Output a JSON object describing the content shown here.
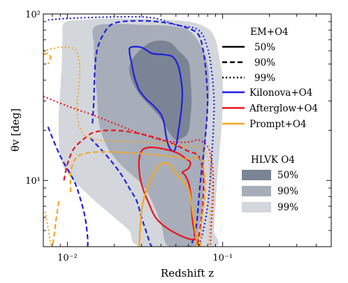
{
  "chart_data": {
    "type": "contour",
    "title": "",
    "xlabel": "Redshift z",
    "ylabel": "θv [deg]",
    "xscale": "log",
    "yscale": "log",
    "xlim": [
      0.007,
      0.5
    ],
    "ylim": [
      4,
      100
    ],
    "x_ticks": [
      {
        "value": 0.01,
        "label": "10⁻²"
      },
      {
        "value": 0.1,
        "label": "10⁻¹"
      }
    ],
    "y_ticks": [
      {
        "value": 10,
        "label": "10¹"
      },
      {
        "value": 100,
        "label": "10²"
      }
    ],
    "colors": {
      "kilonova": "#1f1fe0",
      "afterglow": "#e8141e",
      "prompt": "#f5a623",
      "hlvk_50": "#7b8494",
      "hlvk_90": "#a7aeb9",
      "hlvk_99": "#d3d7dc"
    },
    "legend_em": {
      "title": "EM+O4",
      "styles": [
        {
          "label": "50%",
          "dash": "solid"
        },
        {
          "label": "90%",
          "dash": "dashed"
        },
        {
          "label": "99%",
          "dash": "dotted"
        }
      ],
      "series": [
        {
          "label": "Kilonova+O4",
          "key": "kilonova"
        },
        {
          "label": "Afterglow+O4",
          "key": "afterglow"
        },
        {
          "label": "Prompt+O4",
          "key": "prompt"
        }
      ]
    },
    "legend_hlvk": {
      "title": "HLVK O4",
      "entries": [
        {
          "label": "50%",
          "key": "hlvk_50"
        },
        {
          "label": "90%",
          "key": "hlvk_90"
        },
        {
          "label": "99%",
          "key": "hlvk_99"
        }
      ]
    },
    "filled_contours": [
      {
        "level": "99%",
        "color_key": "hlvk_99",
        "points": [
          [
            0.0095,
            88
          ],
          [
            0.012,
            92
          ],
          [
            0.02,
            94
          ],
          [
            0.035,
            93
          ],
          [
            0.06,
            90
          ],
          [
            0.08,
            82
          ],
          [
            0.09,
            70
          ],
          [
            0.095,
            55
          ],
          [
            0.1,
            40
          ],
          [
            0.1,
            28
          ],
          [
            0.098,
            20
          ],
          [
            0.095,
            14
          ],
          [
            0.092,
            10
          ],
          [
            0.09,
            7
          ],
          [
            0.088,
            5
          ],
          [
            0.087,
            4
          ],
          [
            0.03,
            4
          ],
          [
            0.025,
            5
          ],
          [
            0.02,
            6
          ],
          [
            0.014,
            8
          ],
          [
            0.01,
            11
          ],
          [
            0.009,
            14
          ],
          [
            0.0088,
            18
          ],
          [
            0.0088,
            25
          ],
          [
            0.009,
            35
          ],
          [
            0.0092,
            50
          ],
          [
            0.0093,
            70
          ]
        ]
      },
      {
        "level": "90%",
        "color_key": "hlvk_90",
        "points": [
          [
            0.015,
            84
          ],
          [
            0.022,
            87
          ],
          [
            0.03,
            86
          ],
          [
            0.045,
            85
          ],
          [
            0.06,
            80
          ],
          [
            0.072,
            65
          ],
          [
            0.08,
            50
          ],
          [
            0.082,
            35
          ],
          [
            0.08,
            25
          ],
          [
            0.078,
            18
          ],
          [
            0.076,
            12
          ],
          [
            0.075,
            9
          ],
          [
            0.073,
            6.5
          ],
          [
            0.07,
            5
          ],
          [
            0.068,
            4
          ],
          [
            0.045,
            4
          ],
          [
            0.04,
            5.5
          ],
          [
            0.035,
            7.5
          ],
          [
            0.03,
            9.5
          ],
          [
            0.022,
            12.5
          ],
          [
            0.018,
            16
          ],
          [
            0.016,
            22
          ],
          [
            0.0155,
            32
          ],
          [
            0.015,
            45
          ],
          [
            0.0148,
            65
          ]
        ]
      },
      {
        "level": "50%",
        "color_key": "hlvk_50",
        "points": [
          [
            0.028,
            58
          ],
          [
            0.035,
            68
          ],
          [
            0.045,
            68
          ],
          [
            0.052,
            60
          ],
          [
            0.06,
            52
          ],
          [
            0.062,
            42
          ],
          [
            0.063,
            30
          ],
          [
            0.062,
            24
          ],
          [
            0.06,
            19.5
          ],
          [
            0.055,
            18
          ],
          [
            0.05,
            17.5
          ],
          [
            0.045,
            19.5
          ],
          [
            0.042,
            22
          ],
          [
            0.038,
            25
          ],
          [
            0.034,
            28
          ],
          [
            0.029,
            33
          ],
          [
            0.026,
            40
          ],
          [
            0.025,
            48
          ]
        ]
      }
    ],
    "line_contours": [
      {
        "series": "kilonova",
        "level": "99%",
        "closed": false,
        "points": [
          [
            0.0075,
            92
          ],
          [
            0.01,
            94
          ],
          [
            0.02,
            96
          ],
          [
            0.035,
            95
          ],
          [
            0.05,
            86
          ],
          [
            0.07,
            80
          ],
          [
            0.08,
            62
          ],
          [
            0.085,
            45
          ],
          [
            0.088,
            30
          ],
          [
            0.087,
            20
          ],
          [
            0.085,
            14
          ],
          [
            0.083,
            10
          ],
          [
            0.08,
            7
          ],
          [
            0.075,
            5
          ],
          [
            0.07,
            4
          ]
        ]
      },
      {
        "series": "kilonova",
        "level": "90%",
        "closed": false,
        "points": [
          [
            0.0075,
            21
          ],
          [
            0.009,
            14
          ],
          [
            0.011,
            10
          ],
          [
            0.012,
            8
          ],
          [
            0.013,
            6
          ],
          [
            0.0135,
            4.5
          ],
          [
            0.0135,
            4
          ]
        ]
      },
      {
        "series": "kilonova",
        "level": "90%",
        "closed": false,
        "points": [
          [
            0.0145,
            22
          ],
          [
            0.0148,
            30
          ],
          [
            0.015,
            45
          ],
          [
            0.0155,
            60
          ],
          [
            0.017,
            75
          ],
          [
            0.02,
            88
          ],
          [
            0.03,
            91
          ],
          [
            0.045,
            88
          ],
          [
            0.06,
            82
          ],
          [
            0.07,
            75
          ],
          [
            0.075,
            60
          ],
          [
            0.078,
            45
          ],
          [
            0.08,
            30
          ],
          [
            0.078,
            20
          ],
          [
            0.075,
            14
          ],
          [
            0.072,
            10
          ],
          [
            0.07,
            7.5
          ],
          [
            0.068,
            5.5
          ],
          [
            0.065,
            4.5
          ],
          [
            0.062,
            4
          ]
        ]
      },
      {
        "series": "kilonova",
        "level": "90%",
        "closed": false,
        "points": [
          [
            0.014,
            18
          ],
          [
            0.018,
            14
          ],
          [
            0.022,
            11
          ],
          [
            0.025,
            9
          ],
          [
            0.028,
            7.5
          ],
          [
            0.03,
            6
          ],
          [
            0.032,
            5
          ],
          [
            0.034,
            4.2
          ],
          [
            0.035,
            4
          ]
        ]
      },
      {
        "series": "kilonova",
        "level": "50%",
        "closed": true,
        "points": [
          [
            0.0255,
            63
          ],
          [
            0.03,
            63
          ],
          [
            0.035,
            58
          ],
          [
            0.042,
            57
          ],
          [
            0.048,
            55
          ],
          [
            0.052,
            48
          ],
          [
            0.054,
            40
          ],
          [
            0.055,
            33
          ],
          [
            0.054,
            26
          ],
          [
            0.052,
            20
          ],
          [
            0.05,
            16
          ],
          [
            0.048,
            15
          ],
          [
            0.045,
            16
          ],
          [
            0.043,
            19
          ],
          [
            0.042,
            22
          ],
          [
            0.04,
            25
          ],
          [
            0.036,
            28
          ],
          [
            0.032,
            31
          ],
          [
            0.029,
            35
          ],
          [
            0.027,
            42
          ],
          [
            0.026,
            50
          ],
          [
            0.0252,
            58
          ]
        ]
      },
      {
        "series": "afterglow",
        "level": "99%",
        "closed": false,
        "points": [
          [
            0.007,
            32
          ],
          [
            0.01,
            28
          ],
          [
            0.015,
            24.5
          ],
          [
            0.02,
            22
          ],
          [
            0.03,
            19
          ],
          [
            0.04,
            17.5
          ],
          [
            0.05,
            17
          ],
          [
            0.06,
            17
          ],
          [
            0.07,
            17.5
          ],
          [
            0.08,
            16
          ],
          [
            0.085,
            13
          ],
          [
            0.087,
            10
          ],
          [
            0.086,
            7
          ],
          [
            0.084,
            5
          ],
          [
            0.083,
            4
          ]
        ]
      },
      {
        "series": "afterglow",
        "level": "90%",
        "closed": false,
        "points": [
          [
            0.0095,
            10
          ],
          [
            0.01,
            12.5
          ],
          [
            0.011,
            15.5
          ],
          [
            0.013,
            18
          ],
          [
            0.015,
            19.5
          ],
          [
            0.02,
            20
          ],
          [
            0.03,
            19
          ],
          [
            0.045,
            17
          ],
          [
            0.06,
            15
          ],
          [
            0.07,
            14
          ],
          [
            0.075,
            11
          ],
          [
            0.075,
            8
          ],
          [
            0.073,
            6
          ],
          [
            0.07,
            4.5
          ],
          [
            0.068,
            4
          ]
        ]
      },
      {
        "series": "afterglow",
        "level": "50%",
        "closed": true,
        "points": [
          [
            0.0305,
            15.3
          ],
          [
            0.035,
            15.8
          ],
          [
            0.045,
            15.2
          ],
          [
            0.052,
            14.5
          ],
          [
            0.058,
            13.5
          ],
          [
            0.062,
            12.8
          ],
          [
            0.06,
            11.8
          ],
          [
            0.055,
            11.2
          ],
          [
            0.057,
            10.8
          ],
          [
            0.06,
            9.8
          ],
          [
            0.062,
            8.5
          ],
          [
            0.063,
            7
          ],
          [
            0.064,
            5.7
          ],
          [
            0.066,
            4.8
          ],
          [
            0.065,
            4.4
          ],
          [
            0.05,
            4.8
          ],
          [
            0.038,
            5.8
          ],
          [
            0.033,
            7.5
          ],
          [
            0.03,
            9.5
          ],
          [
            0.029,
            11.5
          ],
          [
            0.029,
            13.5
          ]
        ]
      },
      {
        "series": "prompt",
        "level": "99%",
        "closed": false,
        "points": [
          [
            0.007,
            60
          ],
          [
            0.009,
            63
          ],
          [
            0.011,
            62
          ],
          [
            0.0118,
            55
          ],
          [
            0.012,
            45
          ],
          [
            0.0118,
            35
          ],
          [
            0.0115,
            28
          ],
          [
            0.0118,
            22
          ],
          [
            0.013,
            18.5
          ],
          [
            0.016,
            17.5
          ],
          [
            0.02,
            17.2
          ],
          [
            0.03,
            17
          ],
          [
            0.045,
            16.5
          ],
          [
            0.06,
            16
          ],
          [
            0.075,
            15.5
          ],
          [
            0.083,
            12
          ],
          [
            0.085,
            8
          ],
          [
            0.083,
            6
          ],
          [
            0.082,
            4
          ]
        ]
      },
      {
        "series": "prompt",
        "level": "99%",
        "closed": false,
        "points": [
          [
            0.0072,
            6.5
          ],
          [
            0.0075,
            5.2
          ],
          [
            0.0078,
            4.2
          ],
          [
            0.008,
            4
          ]
        ]
      },
      {
        "series": "prompt",
        "level": "90%",
        "closed": false,
        "points": [
          [
            0.007,
            57
          ],
          [
            0.0075,
            58
          ],
          [
            0.0078,
            55
          ],
          [
            0.0075,
            50
          ]
        ]
      },
      {
        "series": "prompt",
        "level": "90%",
        "closed": false,
        "points": [
          [
            0.0105,
            8.5
          ],
          [
            0.0105,
            11
          ],
          [
            0.011,
            13
          ],
          [
            0.012,
            14.2
          ],
          [
            0.015,
            14.8
          ],
          [
            0.02,
            14.8
          ],
          [
            0.03,
            14.5
          ],
          [
            0.045,
            14
          ],
          [
            0.06,
            13.5
          ],
          [
            0.072,
            13.5
          ],
          [
            0.077,
            10
          ],
          [
            0.076,
            7.5
          ],
          [
            0.073,
            5.5
          ],
          [
            0.072,
            4
          ]
        ]
      },
      {
        "series": "prompt",
        "level": "90%",
        "closed": false,
        "points": [
          [
            0.0088,
            7.5
          ],
          [
            0.0085,
            6
          ],
          [
            0.0082,
            4.6
          ],
          [
            0.008,
            4
          ]
        ]
      },
      {
        "series": "prompt",
        "level": "50%",
        "closed": false,
        "points": [
          [
            0.029,
            4
          ],
          [
            0.03,
            6.5
          ],
          [
            0.032,
            8.5
          ],
          [
            0.036,
            11
          ],
          [
            0.04,
            12.5
          ],
          [
            0.045,
            12.5
          ],
          [
            0.05,
            11
          ],
          [
            0.055,
            10
          ],
          [
            0.06,
            9
          ],
          [
            0.062,
            8
          ],
          [
            0.064,
            6.5
          ],
          [
            0.067,
            4.8
          ],
          [
            0.068,
            4
          ]
        ]
      }
    ]
  }
}
